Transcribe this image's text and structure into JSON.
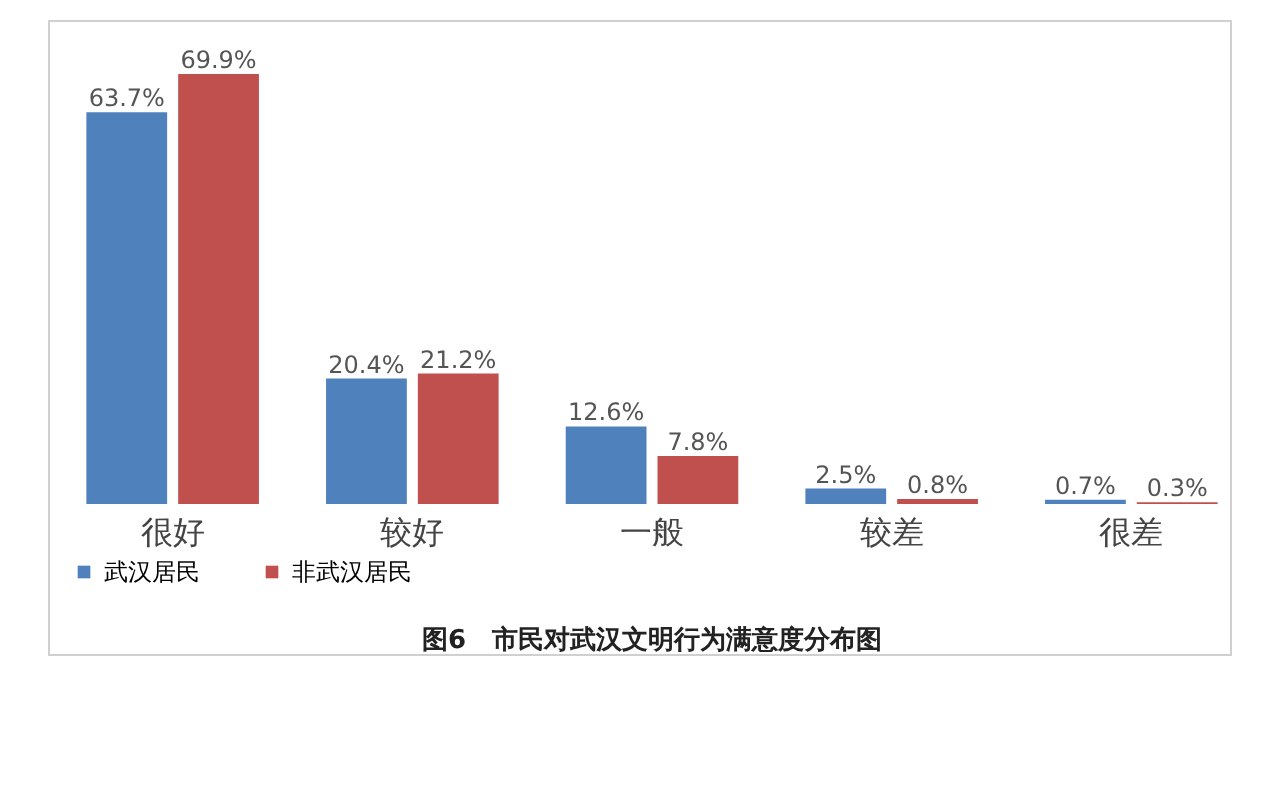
{
  "chart_data": {
    "type": "bar",
    "title": "图6　市民对武汉文明行为满意度分布图",
    "categories": [
      "很好",
      "较好",
      "一般",
      "较差",
      "很差"
    ],
    "series": [
      {
        "name": "武汉居民",
        "color": "#4f81bd",
        "values": [
          63.7,
          20.4,
          12.6,
          2.5,
          0.7
        ],
        "value_labels": [
          "63.7%",
          "20.4%",
          "12.6%",
          "2.5%",
          "0.7%"
        ]
      },
      {
        "name": "非武汉居民",
        "color": "#c0504d",
        "values": [
          69.9,
          21.2,
          7.8,
          0.8,
          0.3
        ],
        "value_labels": [
          "69.9%",
          "21.2%",
          "7.8%",
          "0.8%",
          "0.3%"
        ]
      }
    ],
    "legend": "bottom",
    "grid": false
  }
}
